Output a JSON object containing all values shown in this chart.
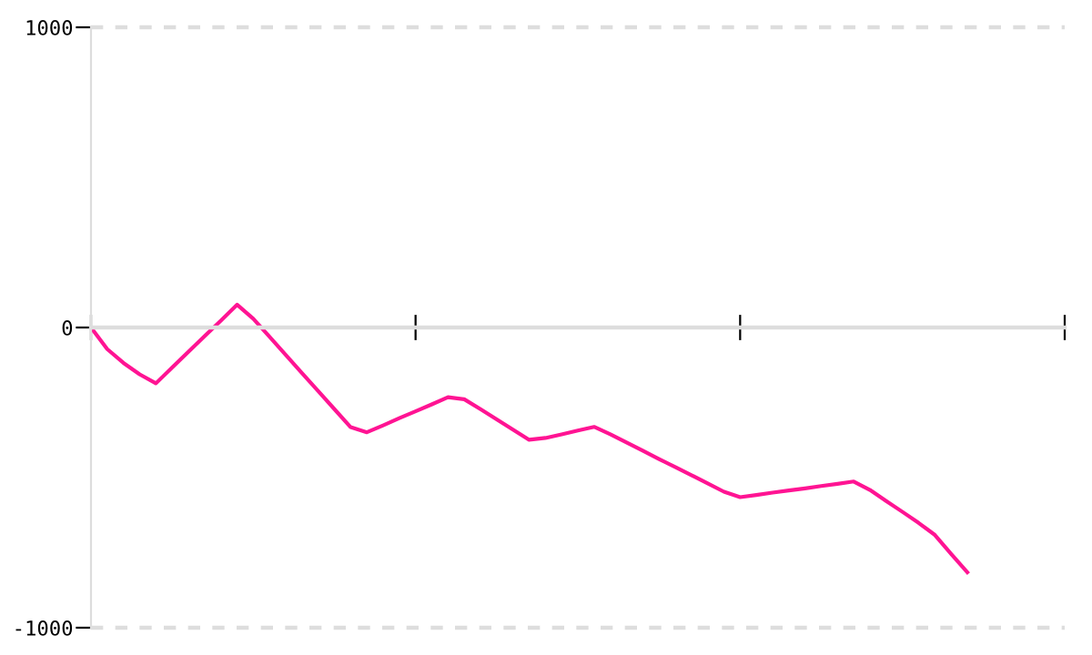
{
  "chart_data": {
    "type": "line",
    "categories": [
      null,
      null,
      null,
      null,
      null,
      null,
      null,
      null,
      null,
      null,
      null,
      null,
      null,
      null,
      null,
      null,
      null,
      null,
      null,
      null,
      null,
      null,
      null,
      null,
      null,
      null,
      null,
      null,
      null,
      null,
      null,
      null,
      null,
      null,
      null,
      null,
      null,
      null,
      null,
      null,
      null,
      null,
      null,
      null,
      null,
      null,
      null,
      null,
      null,
      null,
      null,
      null,
      null,
      null,
      null,
      null,
      null,
      null,
      null,
      null,
      null
    ],
    "series": [
      {
        "color": "#ff1493",
        "values": [
          0,
          -72,
          -118,
          -156,
          -186,
          -133,
          -81,
          -29,
          23,
          76,
          29,
          -31,
          -91,
          -152,
          -212,
          -272,
          -332,
          -349,
          -326,
          -302,
          -279,
          -256,
          -232,
          -239,
          -272,
          -306,
          -340,
          -374,
          -368,
          -356,
          -343,
          -331,
          -356,
          -383,
          -410,
          -438,
          -465,
          -492,
          -519,
          -547,
          -565,
          -558,
          -550,
          -543,
          -536,
          -528,
          -521,
          -513,
          -541,
          -578,
          -614,
          -651,
          -691,
          -754,
          -815,
          null,
          null,
          null,
          null,
          null,
          null
        ]
      }
    ],
    "ylim": [
      -1000,
      1000
    ],
    "yticks": [
      -1000,
      0,
      1000
    ],
    "ref_lines": [
      {
        "axis": "y",
        "value": 0,
        "color": "#dddddd",
        "line_style": "solid"
      },
      {
        "axis": "y",
        "value": 1000,
        "color": "#dddddd",
        "line_style": "dashed"
      },
      {
        "axis": "y",
        "value": -1000,
        "color": "#dddddd",
        "line_style": "dashed"
      }
    ],
    "marker": "none",
    "line_style": "solid"
  }
}
